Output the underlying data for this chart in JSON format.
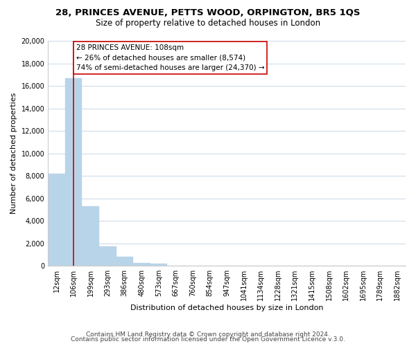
{
  "title": "28, PRINCES AVENUE, PETTS WOOD, ORPINGTON, BR5 1QS",
  "subtitle": "Size of property relative to detached houses in London",
  "xlabel": "Distribution of detached houses by size in London",
  "ylabel": "Number of detached properties",
  "bar_color": "#b8d4e8",
  "bar_edge_color": "#b8d4e8",
  "categories": [
    "12sqm",
    "106sqm",
    "199sqm",
    "293sqm",
    "386sqm",
    "480sqm",
    "573sqm",
    "667sqm",
    "760sqm",
    "854sqm",
    "947sqm",
    "1041sqm",
    "1134sqm",
    "1228sqm",
    "1321sqm",
    "1415sqm",
    "1508sqm",
    "1602sqm",
    "1695sqm",
    "1789sqm",
    "1882sqm"
  ],
  "values": [
    8200,
    16700,
    5300,
    1750,
    800,
    250,
    200,
    0,
    0,
    0,
    0,
    0,
    0,
    0,
    0,
    0,
    0,
    0,
    0,
    0,
    0
  ],
  "ylim": [
    0,
    20000
  ],
  "yticks": [
    0,
    2000,
    4000,
    6000,
    8000,
    10000,
    12000,
    14000,
    16000,
    18000,
    20000
  ],
  "vline_x": 1,
  "vline_color": "#cc0000",
  "annotation_title": "28 PRINCES AVENUE: 108sqm",
  "annotation_line1": "← 26% of detached houses are smaller (8,574)",
  "annotation_line2": "74% of semi-detached houses are larger (24,370) →",
  "annotation_box_color": "#ffffff",
  "annotation_box_edge": "#cc0000",
  "footer1": "Contains HM Land Registry data © Crown copyright and database right 2024.",
  "footer2": "Contains public sector information licensed under the Open Government Licence v.3.0.",
  "background_color": "#ffffff",
  "grid_color": "#c8d8e8",
  "title_fontsize": 9.5,
  "subtitle_fontsize": 8.5,
  "axis_label_fontsize": 8,
  "tick_fontsize": 7,
  "annotation_fontsize": 7.5,
  "footer_fontsize": 6.5
}
